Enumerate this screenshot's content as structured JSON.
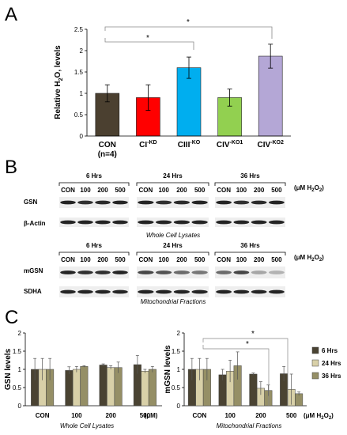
{
  "panel_labels": {
    "a": "A",
    "b": "B",
    "c": "C"
  },
  "colors": {
    "CON": "#4b4030",
    "CI": "#ff0000",
    "CIII": "#00aeef",
    "CIV_KO1": "#92d050",
    "CIV_KO2": "#b4a7d6",
    "hrs6": "#4a4332",
    "hrs24": "#d8d0a8",
    "hrs36": "#958f66"
  },
  "panel_a": {
    "ylabel_main": "Relative H",
    "ylabel_sub": "2",
    "ylabel_end": "O",
    "ylabel_tail": " levels",
    "ylabel_comma": ",",
    "categories": [
      {
        "main": "CON",
        "sup": "",
        "line2": "(n=4)"
      },
      {
        "main": "CI",
        "sup": "-KD",
        "line2": ""
      },
      {
        "main": "CIII",
        "sup": "-KO",
        "line2": ""
      },
      {
        "main": "CIV",
        "sup": "-KO1",
        "line2": ""
      },
      {
        "main": "CIV",
        "sup": "-KO2",
        "line2": ""
      }
    ],
    "significance": [
      "*",
      "*"
    ]
  },
  "panel_b": {
    "time_labels": [
      "6 Hrs",
      "24 Hrs",
      "36 Hrs"
    ],
    "lane_labels": [
      "CON",
      "100",
      "200",
      "500"
    ],
    "unit_prefix": "(μM H",
    "unit_sub": "2",
    "unit_suffix": "O",
    "unit_sub2": "2",
    "unit_close": ")",
    "top_rows": [
      "GSN",
      "β-Actin"
    ],
    "top_caption": "Whole Cell Lysates",
    "bottom_rows": [
      "mGSN",
      "SDHA"
    ],
    "bottom_caption": "Mitochondrial Fractions"
  },
  "panel_c": {
    "left_ylabel": "GSN levels",
    "left_caption": "Whole Cell Lysates",
    "left_unit": "(μM)",
    "right_ylabel": "mGSN levels",
    "right_caption": "Mitochondrial Fractions",
    "right_unit_prefix": "(μM H",
    "right_unit_sub": "2",
    "right_unit_suffix": "O",
    "right_unit_sub2": "2",
    "right_unit_close": ")",
    "significance": [
      "*",
      "*"
    ]
  },
  "chart_data": [
    {
      "type": "bar",
      "title": "",
      "xlabel": "",
      "ylabel": "Relative H2O, levels",
      "categories": [
        "CON (n=4)",
        "CI-KD",
        "CIII-KO",
        "CIV-KO1",
        "CIV-KO2"
      ],
      "values": [
        1.0,
        0.9,
        1.6,
        0.9,
        1.87
      ],
      "errors": [
        0.2,
        0.3,
        0.25,
        0.2,
        0.28
      ],
      "ylim": [
        0,
        2.5
      ],
      "yticks": [
        "0",
        "0.5",
        "1",
        "1.5",
        "2",
        "2.5"
      ],
      "grid": false
    },
    {
      "type": "bar",
      "title": "",
      "xlabel": "",
      "ylabel": "GSN levels",
      "categories": [
        "CON",
        "100",
        "200",
        "500"
      ],
      "series": [
        {
          "name": "6 Hrs",
          "values": [
            1.0,
            0.97,
            1.12,
            1.13
          ],
          "errors": [
            0.3,
            0.1,
            0.03,
            0.25
          ]
        },
        {
          "name": "24 Hrs",
          "values": [
            1.0,
            1.0,
            1.05,
            0.95
          ],
          "errors": [
            0.3,
            0.08,
            0.05,
            0.05
          ]
        },
        {
          "name": "36 Hrs",
          "values": [
            1.0,
            1.08,
            1.05,
            1.0
          ],
          "errors": [
            0.3,
            0.02,
            0.15,
            0.08
          ]
        }
      ],
      "ylim": [
        0,
        2
      ],
      "yticks": [
        "0",
        "0.5",
        "1",
        "1.5",
        "2"
      ],
      "grid": false
    },
    {
      "type": "bar",
      "title": "",
      "xlabel": "",
      "ylabel": "mGSN levels",
      "categories": [
        "CON",
        "100",
        "200",
        "500"
      ],
      "series": [
        {
          "name": "6 Hrs",
          "values": [
            1.0,
            0.85,
            0.87,
            0.88
          ],
          "errors": [
            0.3,
            0.15,
            0.03,
            0.2
          ]
        },
        {
          "name": "24 Hrs",
          "values": [
            1.0,
            0.95,
            0.48,
            0.45
          ],
          "errors": [
            0.3,
            0.3,
            0.18,
            0.42
          ]
        },
        {
          "name": "36 Hrs",
          "values": [
            1.0,
            1.1,
            0.42,
            0.33
          ],
          "errors": [
            0.3,
            0.38,
            0.15,
            0.05
          ]
        }
      ],
      "ylim": [
        0,
        2
      ],
      "yticks": [
        "0",
        "0.5",
        "1",
        "1.5",
        "2"
      ],
      "legend": "right",
      "grid": false
    }
  ]
}
